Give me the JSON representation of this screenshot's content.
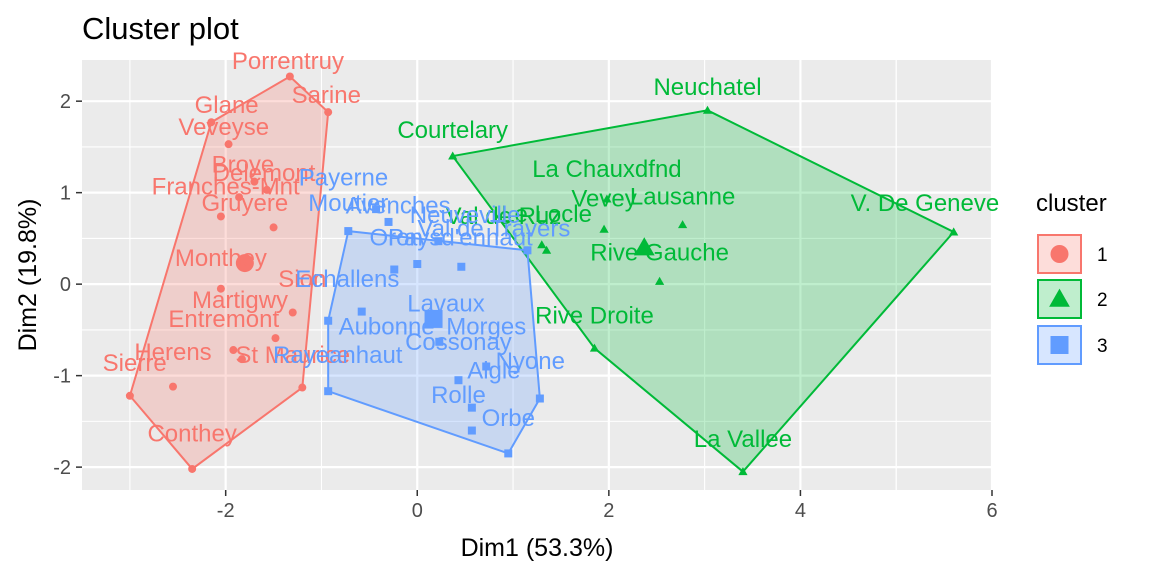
{
  "chart_data": {
    "type": "scatter",
    "title": "Cluster plot",
    "xlabel": "Dim1 (53.3%)",
    "ylabel": "Dim2 (19.8%)",
    "xlim": [
      -3.5,
      6.0
    ],
    "ylim": [
      -2.25,
      2.45
    ],
    "xticks": [
      -2,
      0,
      2,
      4,
      6
    ],
    "yticks": [
      -2,
      -1,
      0,
      1,
      2
    ],
    "xtick_labels": [
      "-2",
      "0",
      "2",
      "4",
      "6"
    ],
    "ytick_labels": [
      "-2",
      "-1",
      "0",
      "1",
      "2"
    ],
    "grid": true,
    "legend": {
      "title": "cluster",
      "position": "right",
      "entries": [
        "1",
        "2",
        "3"
      ]
    },
    "colors": {
      "1": "#F8766D",
      "2": "#00BA38",
      "3": "#619CFF"
    },
    "series": [
      {
        "name": "1",
        "marker": "circle",
        "hull": [
          [
            -3.0,
            -1.22
          ],
          [
            -2.35,
            -2.02
          ],
          [
            -1.2,
            -1.13
          ],
          [
            -0.93,
            1.88
          ],
          [
            -1.33,
            2.27
          ],
          [
            -2.15,
            1.77
          ]
        ],
        "centroid": [
          -1.8,
          0.23
        ],
        "points": [
          {
            "label": "Porrentruy",
            "x": -1.33,
            "y": 2.27
          },
          {
            "label": "Sarine",
            "x": -0.93,
            "y": 1.88
          },
          {
            "label": "Glane",
            "x": -2.15,
            "y": 1.77
          },
          {
            "label": "Veveyse",
            "x": -1.97,
            "y": 1.53
          },
          {
            "label": "Broye",
            "x": -1.7,
            "y": 1.12
          },
          {
            "label": "Delemont",
            "x": -1.57,
            "y": 1.03
          },
          {
            "label": "Franches-Mnt",
            "x": -1.86,
            "y": 0.95
          },
          {
            "label": "Gruyere",
            "x": -2.05,
            "y": 0.74
          },
          {
            "label": "Monthey",
            "x": -1.5,
            "y": 0.62
          },
          {
            "label": "Sion",
            "x": -2.05,
            "y": -0.05
          },
          {
            "label": "Martigwy",
            "x": -1.3,
            "y": -0.31
          },
          {
            "label": "Entremont",
            "x": -1.48,
            "y": -0.59
          },
          {
            "label": "Herens",
            "x": -1.92,
            "y": -0.72
          },
          {
            "label": "St Maurice",
            "x": -1.83,
            "y": -0.82
          },
          {
            "label": "Sierre",
            "x": -3.0,
            "y": -1.22
          },
          {
            "label": "Conthey",
            "x": -2.35,
            "y": -2.02
          },
          {
            "label": "",
            "x": -2.55,
            "y": -1.12
          },
          {
            "label": "",
            "x": -1.2,
            "y": -1.13
          }
        ],
        "label_positions": {
          "Porrentruy": [
            -1.35,
            2.35
          ],
          "Sarine": [
            -0.95,
            1.98
          ],
          "Glane": [
            -1.99,
            1.87
          ],
          "Veveyse": [
            -2.02,
            1.63
          ],
          "Broye": [
            -1.82,
            1.22
          ],
          "Delemont": [
            -1.6,
            1.13
          ],
          "Franches-Mnt": [
            -2.0,
            0.98
          ],
          "Gruyere": [
            -1.8,
            0.8
          ],
          "Monthey": [
            -2.05,
            0.2
          ],
          "Sion": [
            -1.2,
            -0.03
          ],
          "Martigwy": [
            -1.85,
            -0.26
          ],
          "Entremont": [
            -2.02,
            -0.47
          ],
          "Herens": [
            -2.55,
            -0.83
          ],
          "St Maurice": [
            -1.3,
            -0.86
          ],
          "Sierre": [
            -2.95,
            -0.95
          ],
          "Conthey": [
            -2.35,
            -1.72
          ]
        }
      },
      {
        "name": "2",
        "marker": "triangle",
        "hull": [
          [
            0.37,
            1.4
          ],
          [
            3.03,
            1.9
          ],
          [
            5.6,
            0.57
          ],
          [
            3.4,
            -2.05
          ],
          [
            1.85,
            -0.7
          ]
        ],
        "centroid": [
          2.37,
          0.4
        ],
        "points": [
          {
            "label": "Neuchatel",
            "x": 3.03,
            "y": 1.9
          },
          {
            "label": "Courtelary",
            "x": 0.37,
            "y": 1.4
          },
          {
            "label": "La Chauxdfnd",
            "x": 1.98,
            "y": 0.93
          },
          {
            "label": "Vevey",
            "x": 1.95,
            "y": 0.6
          },
          {
            "label": "Lausanne",
            "x": 2.77,
            "y": 0.65
          },
          {
            "label": "V. De Geneve",
            "x": 5.6,
            "y": 0.57
          },
          {
            "label": "Val de Ruz",
            "x": 1.3,
            "y": 0.43
          },
          {
            "label": "Le Locle",
            "x": 1.35,
            "y": 0.37
          },
          {
            "label": "Rive Gauche",
            "x": 2.53,
            "y": 0.03
          },
          {
            "label": "Rive Droite",
            "x": 1.85,
            "y": -0.7
          },
          {
            "label": "La Vallee",
            "x": 3.4,
            "y": -2.05
          }
        ],
        "label_positions": {
          "Neuchatel": [
            3.03,
            2.07
          ],
          "Courtelary": [
            0.37,
            1.6
          ],
          "La Chauxdfnd": [
            1.98,
            1.17
          ],
          "Vevey": [
            1.95,
            0.85
          ],
          "Lausanne": [
            2.77,
            0.87
          ],
          "V. De Geneve": [
            5.3,
            0.8
          ],
          "Val de Ruz": [
            0.9,
            0.66
          ],
          "Le Locle": [
            1.35,
            0.68
          ],
          "Rive Gauche": [
            2.53,
            0.26
          ],
          "Rive Droite": [
            1.85,
            -0.43
          ],
          "La Vallee": [
            3.4,
            -1.78
          ]
        }
      },
      {
        "name": "3",
        "marker": "square",
        "hull": [
          [
            -0.93,
            -1.17
          ],
          [
            0.95,
            -1.85
          ],
          [
            1.28,
            -1.25
          ],
          [
            1.15,
            0.37
          ],
          [
            -0.72,
            0.58
          ],
          [
            -0.93,
            -0.4
          ]
        ],
        "centroid": [
          0.17,
          -0.38
        ],
        "points": [
          {
            "label": "Payerne",
            "x": -0.43,
            "y": 0.82
          },
          {
            "label": "Moutier",
            "x": -0.72,
            "y": 0.58
          },
          {
            "label": "Avenches",
            "x": -0.3,
            "y": 0.68
          },
          {
            "label": "Neuveville",
            "x": 0.22,
            "y": 0.47
          },
          {
            "label": "Val de Travers",
            "x": 1.15,
            "y": 0.37
          },
          {
            "label": "Paysd'enhaut",
            "x": 0.46,
            "y": 0.19
          },
          {
            "label": "Oron",
            "x": -0.24,
            "y": 0.16
          },
          {
            "label": "Echallens",
            "x": -0.58,
            "y": -0.3
          },
          {
            "label": "Lavaux",
            "x": 0.17,
            "y": -0.4
          },
          {
            "label": "Morges",
            "x": 0.72,
            "y": -0.9
          },
          {
            "label": "Aubonne",
            "x": 0.23,
            "y": -0.63
          },
          {
            "label": "Cossonay",
            "x": 0.43,
            "y": -1.05
          },
          {
            "label": "Nyone",
            "x": 1.28,
            "y": -1.25
          },
          {
            "label": "Aigle",
            "x": 0.57,
            "y": -1.35
          },
          {
            "label": "Rolle",
            "x": 0.57,
            "y": -1.6
          },
          {
            "label": "Orbe",
            "x": 0.95,
            "y": -1.85
          },
          {
            "label": "",
            "x": -0.93,
            "y": -1.17
          },
          {
            "label": "",
            "x": -0.93,
            "y": -0.4
          },
          {
            "label": "",
            "x": 0.0,
            "y": 0.22
          }
        ],
        "label_positions": {
          "Payerne": [
            -0.77,
            1.08
          ],
          "Moutier": [
            -0.72,
            0.8
          ],
          "Avenches": [
            -0.2,
            0.77
          ],
          "Neuveville": [
            0.5,
            0.67
          ],
          "Val de Travers": [
            0.8,
            0.52
          ],
          "Paysd'enhaut": [
            0.45,
            0.42
          ],
          "Oron": [
            -0.22,
            0.42
          ],
          "Echallens": [
            -0.73,
            -0.03
          ],
          "Lavaux": [
            0.3,
            -0.3
          ],
          "Morges": [
            0.72,
            -0.55
          ],
          "Aubonne": [
            -0.32,
            -0.55
          ],
          "Cossonay": [
            0.43,
            -0.72
          ],
          "Nyone": [
            1.18,
            -0.93
          ],
          "Aigle": [
            0.8,
            -1.03
          ],
          "Rolle": [
            0.43,
            -1.3
          ],
          "Orbe": [
            0.95,
            -1.55
          ],
          "Rayeanhaut": [
            -0.83,
            -0.86
          ]
        }
      }
    ],
    "extra_labels": [
      {
        "label": "Rayeanhaut",
        "series": "3"
      }
    ]
  }
}
